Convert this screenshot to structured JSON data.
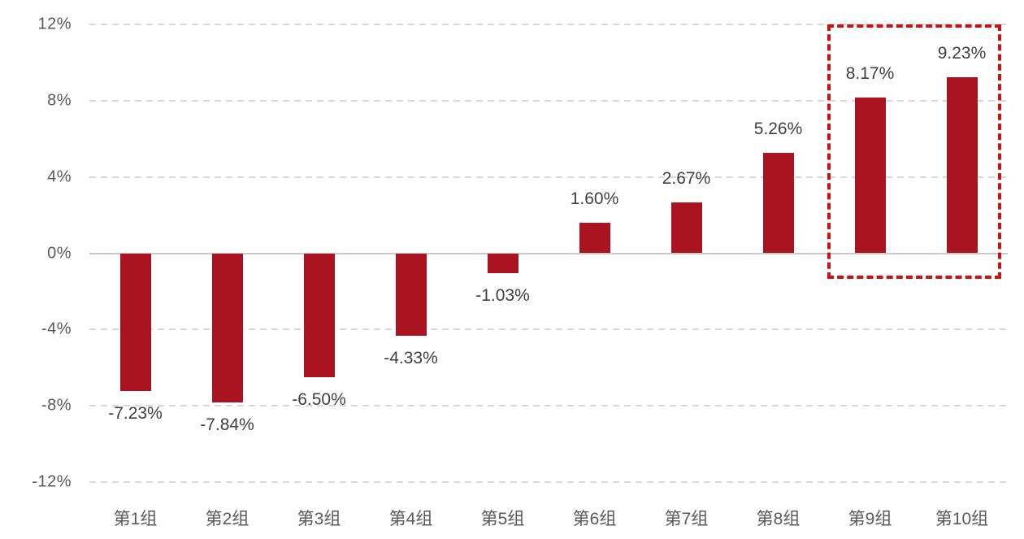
{
  "chart_data": {
    "type": "bar",
    "title": "",
    "xlabel": "",
    "ylabel": "",
    "categories": [
      "第1组",
      "第2组",
      "第3组",
      "第4组",
      "第5组",
      "第6组",
      "第7组",
      "第8组",
      "第9组",
      "第10组"
    ],
    "values": [
      -7.23,
      -7.84,
      -6.5,
      -4.33,
      -1.03,
      1.6,
      2.67,
      5.26,
      8.17,
      9.23
    ],
    "data_labels": [
      "-7.23%",
      "-7.84%",
      "-6.50%",
      "-4.33%",
      "-1.03%",
      "1.60%",
      "2.67%",
      "5.26%",
      "8.17%",
      "9.23%"
    ],
    "ylim": [
      -12,
      12
    ],
    "y_ticks": [
      {
        "value": 12,
        "label": "12%"
      },
      {
        "value": 8,
        "label": "8%"
      },
      {
        "value": 4,
        "label": "4%"
      },
      {
        "value": 0,
        "label": "0%"
      },
      {
        "value": -4,
        "label": "-4%"
      },
      {
        "value": -8,
        "label": "-8%"
      },
      {
        "value": -12,
        "label": "-12%"
      }
    ],
    "grid": "horizontal-dashed",
    "legend": "none",
    "bar_color": "#a91420",
    "highlight_box": {
      "categories": [
        "第9组",
        "第10组"
      ],
      "color": "#cc1111",
      "style": "dashed"
    }
  }
}
